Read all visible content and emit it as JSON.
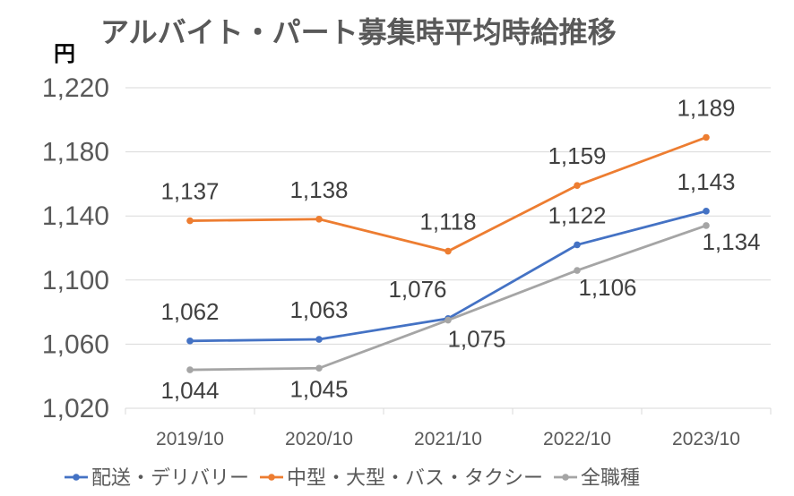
{
  "chart_data": {
    "type": "line",
    "title": "アルバイト・パート募集時平均時給推移",
    "unit": "円",
    "categories": [
      "2019/10",
      "2020/10",
      "2021/10",
      "2022/10",
      "2023/10"
    ],
    "ylim": [
      1020,
      1220
    ],
    "yticks": [
      "1,020",
      "1,060",
      "1,100",
      "1,140",
      "1,180",
      "1,220"
    ],
    "grid": true,
    "legend_position": "bottom",
    "series": [
      {
        "name": "配送・デリバリー",
        "color": "#4472c4",
        "values": [
          1062,
          1063,
          1076,
          1122,
          1143
        ],
        "labels": [
          "1,062",
          "1,063",
          "1,076",
          "1,122",
          "1,143"
        ]
      },
      {
        "name": "中型・大型・バス・タクシー",
        "color": "#ed7d31",
        "values": [
          1137,
          1138,
          1118,
          1159,
          1189
        ],
        "labels": [
          "1,137",
          "1,138",
          "1,118",
          "1,159",
          "1,189"
        ]
      },
      {
        "name": "全職種",
        "color": "#a5a5a5",
        "values": [
          1044,
          1045,
          1075,
          1106,
          1134
        ],
        "labels": [
          "1,044",
          "1,045",
          "1,075",
          "1,106",
          "1,134"
        ]
      }
    ]
  }
}
